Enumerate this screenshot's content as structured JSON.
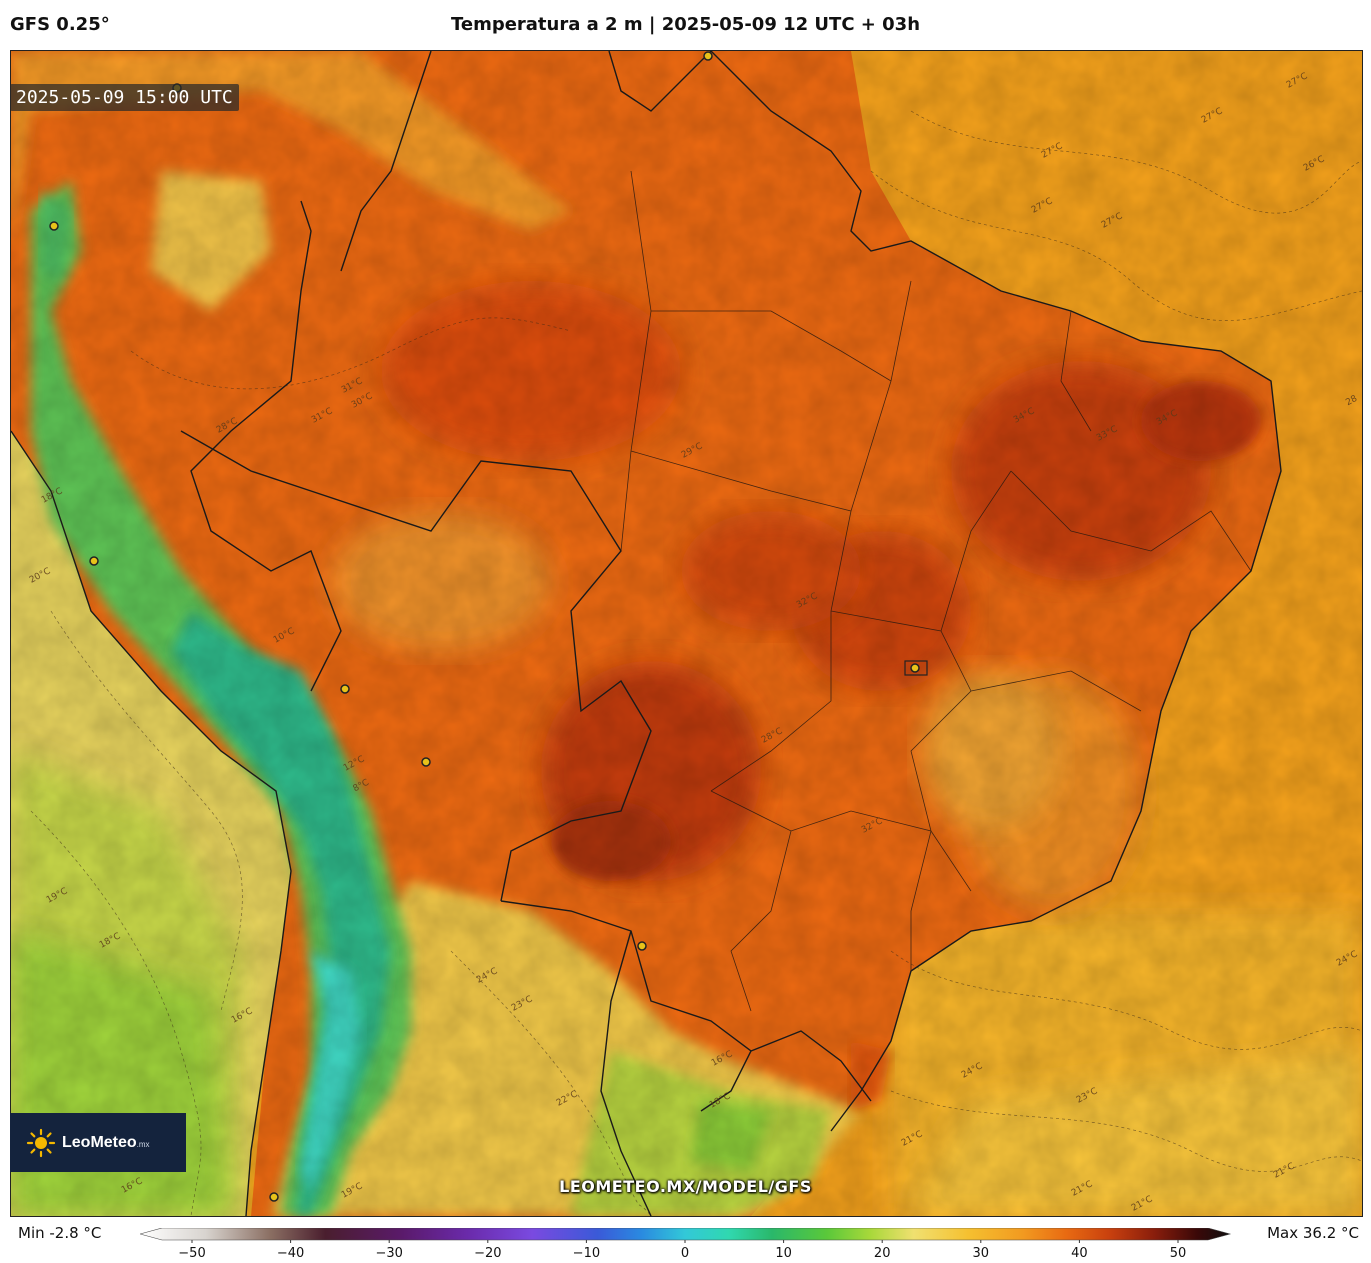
{
  "header": {
    "model": "GFS 0.25°",
    "title": "Temperatura a 2 m | 2025-05-09 12 UTC + 03h"
  },
  "map": {
    "valid_time": "2025-05-09 15:00 UTC",
    "watermark": "LEOMETEO.MX/MODEL/GFS",
    "logo": {
      "name": "LeoMeteo",
      "suffix": ".mx"
    },
    "isotherm_labels": [
      {
        "text": "27°C"
      },
      {
        "text": "27°C"
      },
      {
        "text": "27°C"
      },
      {
        "text": "26°C"
      },
      {
        "text": "27°C"
      },
      {
        "text": "27°C"
      },
      {
        "text": "28"
      },
      {
        "text": "31°C"
      },
      {
        "text": "30°C"
      },
      {
        "text": "31°C"
      },
      {
        "text": "28°C"
      },
      {
        "text": "34°C"
      },
      {
        "text": "33°C"
      },
      {
        "text": "34°C"
      },
      {
        "text": "18°C"
      },
      {
        "text": "20°C"
      },
      {
        "text": "10°C"
      },
      {
        "text": "12°C"
      },
      {
        "text": "8°C"
      },
      {
        "text": "19°C"
      },
      {
        "text": "18°C"
      },
      {
        "text": "16°C"
      },
      {
        "text": "16°C"
      },
      {
        "text": "19°C"
      },
      {
        "text": "24°C"
      },
      {
        "text": "23°C"
      },
      {
        "text": "22°C"
      },
      {
        "text": "16°C"
      },
      {
        "text": "18°C"
      },
      {
        "text": "21°C"
      },
      {
        "text": "24°C"
      },
      {
        "text": "23°C"
      },
      {
        "text": "21°C"
      },
      {
        "text": "21°C"
      },
      {
        "text": "21°C"
      },
      {
        "text": "24°C"
      },
      {
        "text": "32°C"
      },
      {
        "text": "32°C"
      },
      {
        "text": "28°C"
      },
      {
        "text": "29°C"
      }
    ],
    "colors": {
      "ocean_atlantic": "#f5a21c",
      "ocean_pacific": "#e9d25a",
      "hot_land": "#ea5a10",
      "very_hot": "#c23a10",
      "warm": "#f28a1c",
      "mild": "#f3c548",
      "cool": "#a6d43c",
      "andes_green": "#3bb56b",
      "andes_teal": "#2fd3b0",
      "border": "#1a1a1a"
    }
  },
  "colorbar": {
    "min_label": "Min -2.8 °C",
    "max_label": "Max 36.2 °C",
    "ticks": [
      "−50",
      "−40",
      "−30",
      "−20",
      "−10",
      "0",
      "10",
      "20",
      "30",
      "40",
      "50"
    ],
    "range": [
      -50,
      50
    ]
  }
}
